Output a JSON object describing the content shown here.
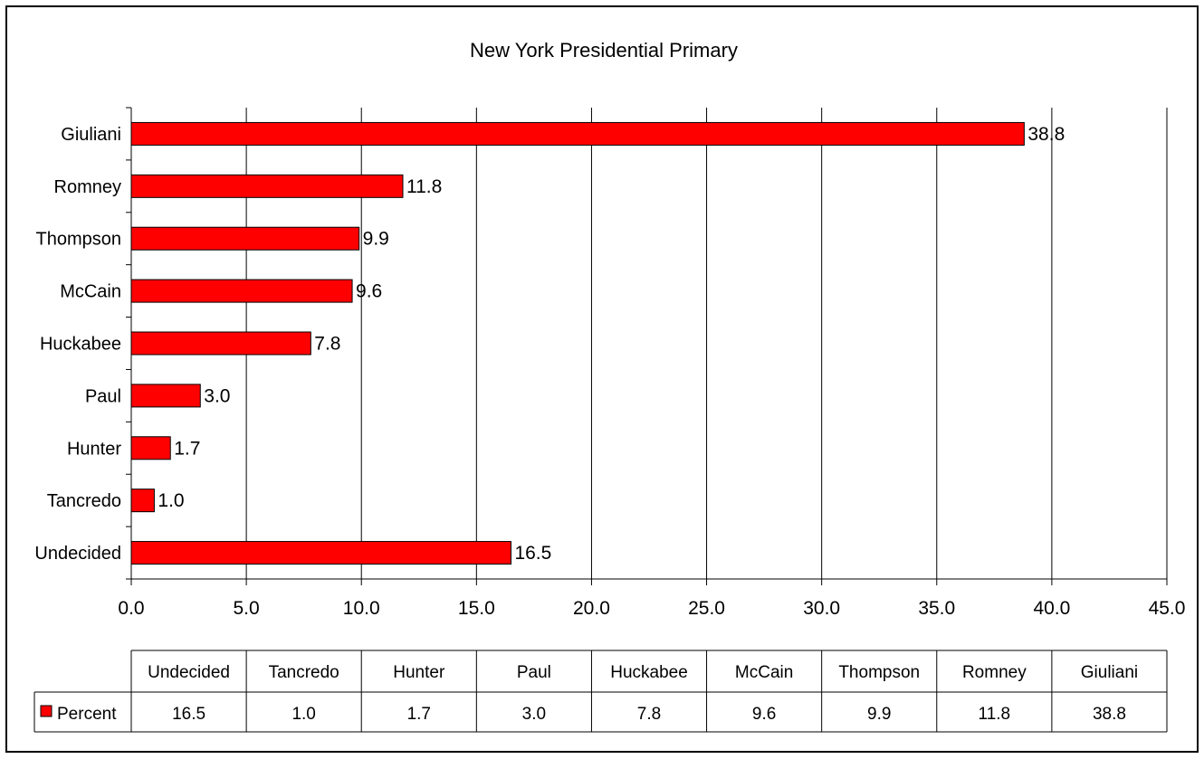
{
  "chart_data": {
    "type": "bar",
    "orientation": "horizontal",
    "title": "New York Presidential Primary",
    "categories": [
      "Giuliani",
      "Romney",
      "Thompson",
      "McCain",
      "Huckabee",
      "Paul",
      "Hunter",
      "Tancredo",
      "Undecided"
    ],
    "series": [
      {
        "name": "Percent",
        "color": "#ff0000",
        "values": [
          38.8,
          11.8,
          9.9,
          9.6,
          7.8,
          3.0,
          1.7,
          1.0,
          16.5
        ]
      }
    ],
    "xlim": [
      0,
      45
    ],
    "xticks": [
      "0.0",
      "5.0",
      "10.0",
      "15.0",
      "20.0",
      "25.0",
      "30.0",
      "35.0",
      "40.0",
      "45.0"
    ],
    "grid": "vertical",
    "data_labels": true,
    "data_table": {
      "columns": [
        "Undecided",
        "Tancredo",
        "Hunter",
        "Paul",
        "Huckabee",
        "McCain",
        "Thompson",
        "Romney",
        "Giuliani"
      ],
      "row_label": "Percent",
      "values": [
        "16.5",
        "1.0",
        "1.7",
        "3.0",
        "7.8",
        "9.6",
        "9.9",
        "11.8",
        "38.8"
      ]
    }
  }
}
